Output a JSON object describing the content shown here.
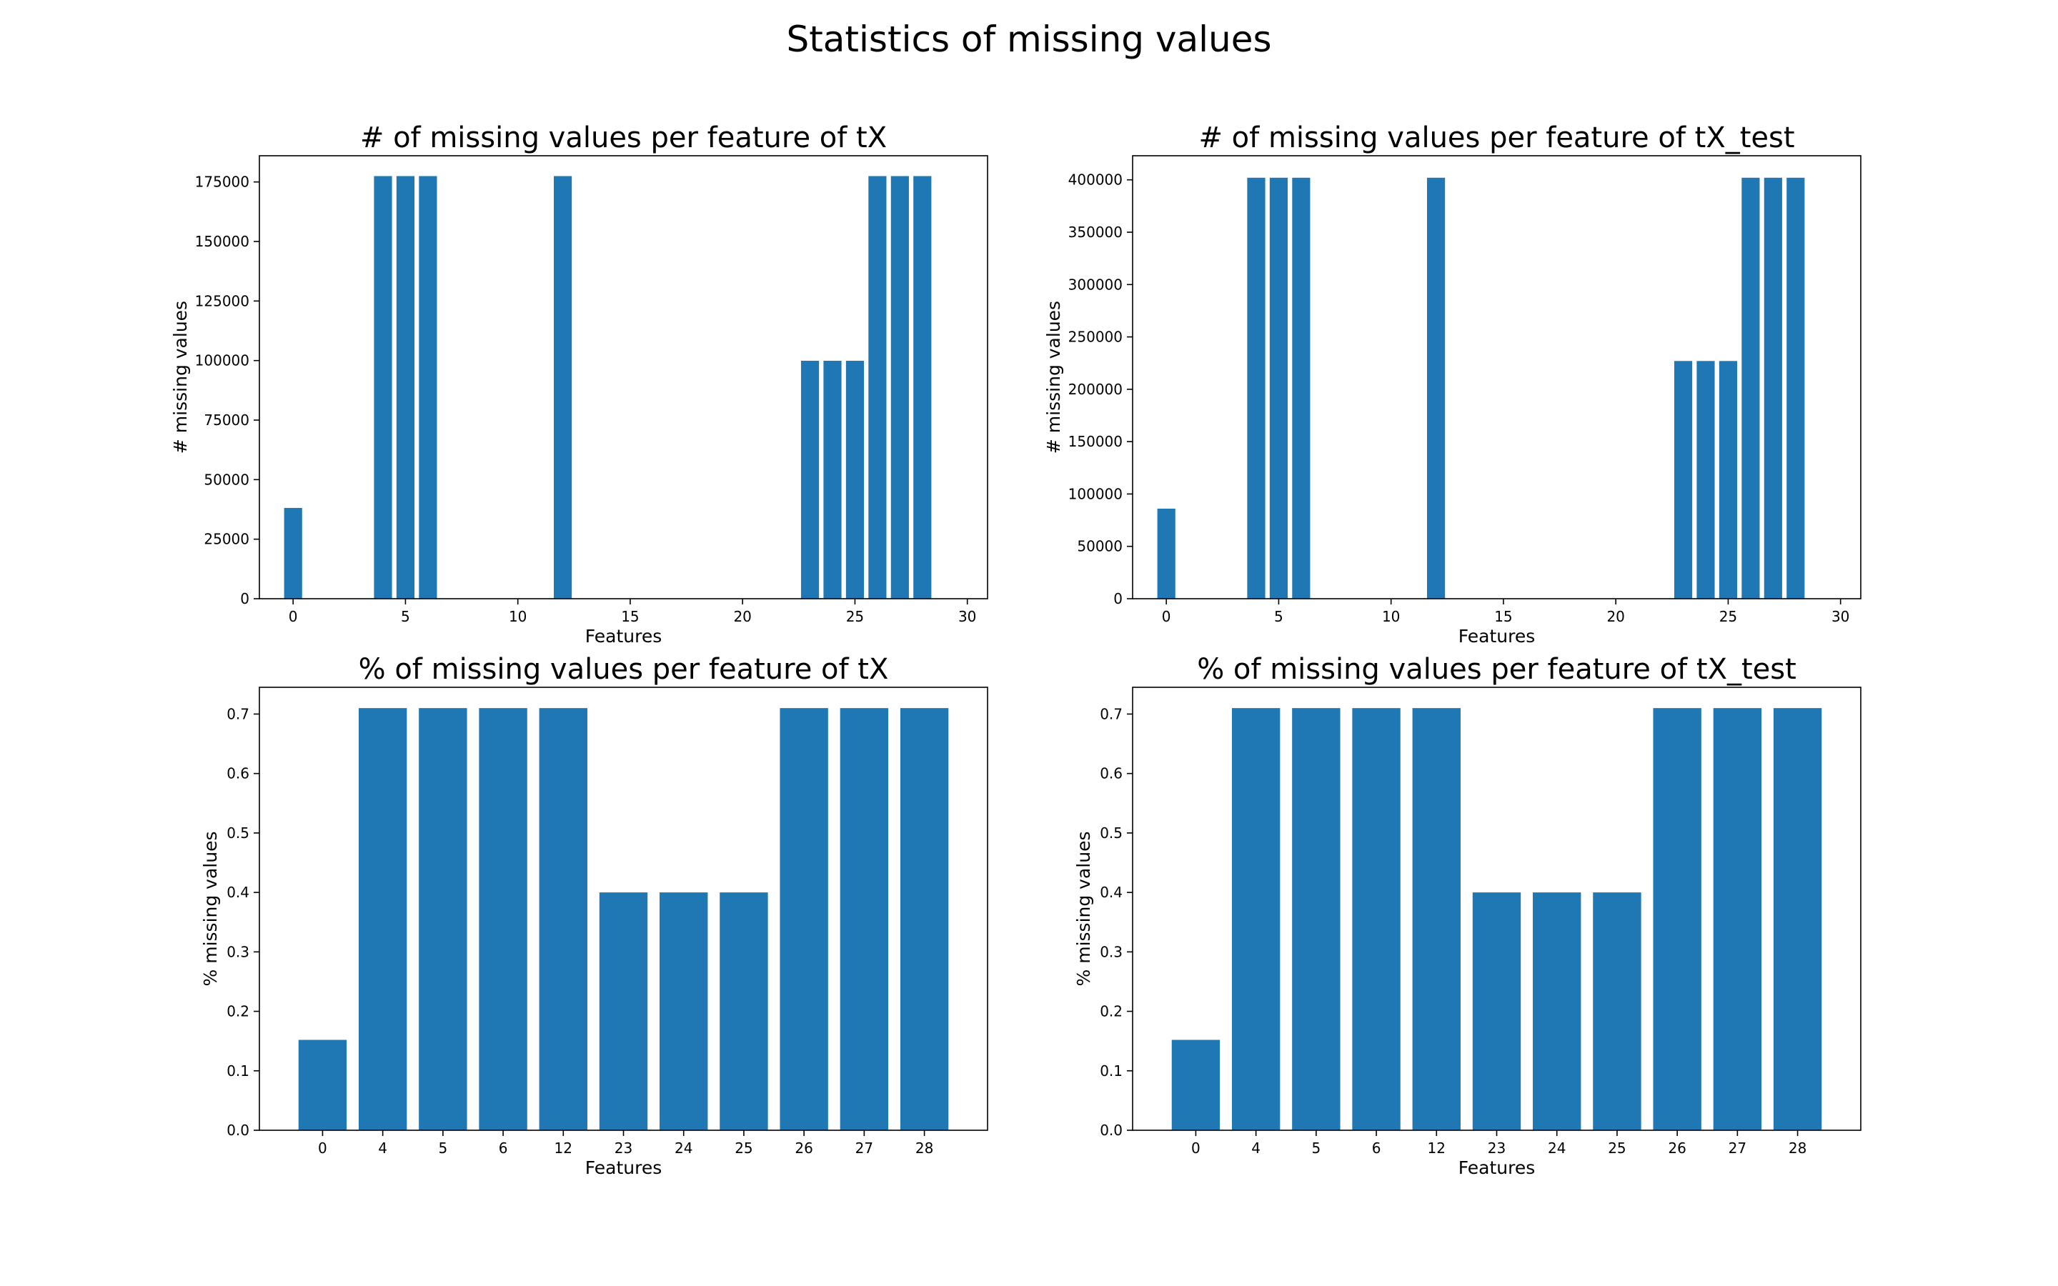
{
  "figure": {
    "title": "Statistics of missing values"
  },
  "colors": {
    "bar": "#1f77b4",
    "axis": "#000000",
    "background": "#ffffff"
  },
  "chart_data": [
    {
      "id": "count-tx",
      "type": "bar",
      "title": "# of missing values per feature of tX",
      "xlabel": "Features",
      "ylabel": "# missing values",
      "xscale": "numeric",
      "xlim": [
        -1.5,
        30.9
      ],
      "ylim": [
        0,
        186000
      ],
      "xticks": [
        0,
        5,
        10,
        15,
        20,
        25,
        30
      ],
      "yticks": [
        0,
        25000,
        50000,
        75000,
        100000,
        125000,
        150000,
        175000
      ],
      "bar_width": 0.8,
      "x": [
        0,
        4,
        5,
        6,
        12,
        23,
        24,
        25,
        26,
        27,
        28
      ],
      "values": [
        38114,
        177457,
        177457,
        177457,
        177457,
        99913,
        99913,
        99913,
        177457,
        177457,
        177457
      ]
    },
    {
      "id": "count-tx-test",
      "type": "bar",
      "title": "# of missing values per feature of tX_test",
      "xlabel": "Features",
      "ylabel": "# missing values",
      "xscale": "numeric",
      "xlim": [
        -1.5,
        30.9
      ],
      "ylim": [
        0,
        423000
      ],
      "xticks": [
        0,
        5,
        10,
        15,
        20,
        25,
        30
      ],
      "yticks": [
        0,
        50000,
        100000,
        150000,
        200000,
        250000,
        300000,
        350000,
        400000
      ],
      "bar_width": 0.8,
      "x": [
        0,
        4,
        5,
        6,
        12,
        23,
        24,
        25,
        26,
        27,
        28
      ],
      "values": [
        86000,
        402000,
        402000,
        402000,
        402000,
        227000,
        227000,
        227000,
        402000,
        402000,
        402000
      ]
    },
    {
      "id": "pct-tx",
      "type": "bar",
      "title": "% of missing values per feature of tX",
      "xlabel": "Features",
      "ylabel": "% missing values",
      "xscale": "categorical",
      "ylim": [
        0,
        0.745
      ],
      "yticks": [
        0.0,
        0.1,
        0.2,
        0.3,
        0.4,
        0.5,
        0.6,
        0.7
      ],
      "bar_width": 0.8,
      "categories": [
        "0",
        "4",
        "5",
        "6",
        "12",
        "23",
        "24",
        "25",
        "26",
        "27",
        "28"
      ],
      "values": [
        0.152,
        0.71,
        0.71,
        0.71,
        0.71,
        0.4,
        0.4,
        0.4,
        0.71,
        0.71,
        0.71
      ]
    },
    {
      "id": "pct-tx-test",
      "type": "bar",
      "title": "% of missing values per feature of tX_test",
      "xlabel": "Features",
      "ylabel": "% missing values",
      "xscale": "categorical",
      "ylim": [
        0,
        0.745
      ],
      "yticks": [
        0.0,
        0.1,
        0.2,
        0.3,
        0.4,
        0.5,
        0.6,
        0.7
      ],
      "bar_width": 0.8,
      "categories": [
        "0",
        "4",
        "5",
        "6",
        "12",
        "23",
        "24",
        "25",
        "26",
        "27",
        "28"
      ],
      "values": [
        0.152,
        0.71,
        0.71,
        0.71,
        0.71,
        0.4,
        0.4,
        0.4,
        0.71,
        0.71,
        0.71
      ]
    }
  ]
}
